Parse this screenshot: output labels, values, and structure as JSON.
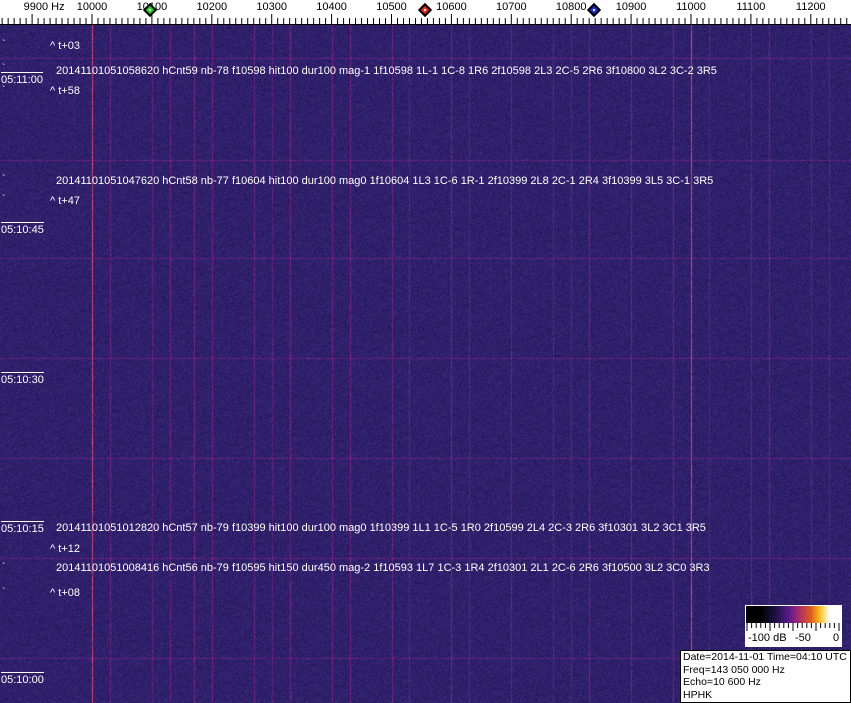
{
  "frequency_axis": {
    "labels": [
      "9900 Hz",
      "10000",
      "10100",
      "10200",
      "10300",
      "10400",
      "10500",
      "10600",
      "10700",
      "10800",
      "10900",
      "11000",
      "11100",
      "11200"
    ],
    "values_hz": [
      9900,
      10000,
      10100,
      10200,
      10300,
      10400,
      10500,
      10600,
      10700,
      10800,
      10900,
      11000,
      11100,
      11200
    ]
  },
  "markers": [
    {
      "name": "green",
      "freq_hz": 10097,
      "color": "#22cc22"
    },
    {
      "name": "red",
      "freq_hz": 10556,
      "color": "#dd2222"
    },
    {
      "name": "blue",
      "freq_hz": 10838,
      "color": "#1a2acc"
    }
  ],
  "time_labels": [
    "05:11:00",
    "05:10:45",
    "05:10:30",
    "05:10:15",
    "05:10:00"
  ],
  "detections": [
    {
      "text": "20141101051058620 hCnt59 nb-78 f10598 hit100 dur100 mag-1 1f10598 1L-1 1C-8 1R6 2f10598 2L3 2C-5 2R6 3f10800 3L2 3C-2 3R5"
    },
    {
      "text": "20141101051047620 hCnt58 nb-77 f10604 hit100 dur100 mag0 1f10604 1L3 1C-6 1R-1 2f10399 2L8 2C-1 2R4 3f10399 3L5 3C-1 3R5"
    },
    {
      "text": "20141101051012820 hCnt57 nb-79 f10399 hit100 dur100 mag0 1f10399 1L1 1C-5 1R0 2f10599 2L4 2C-3 2R6 3f10301 3L2 3C1 3R5"
    },
    {
      "text": "20141101051008416 hCnt56 nb-79 f10595 hit150 dur450 mag-2 1f10593 1L7 1C-3 1R4 2f10301 2L1 2C-6 2R6 3f10500 3L2 3C0 3R3"
    }
  ],
  "offsets": [
    "^ t+03",
    "^ t+58",
    "^ t+47",
    "^ t+12",
    "^ t+08"
  ],
  "colorbar": {
    "labels": [
      "-100 dB",
      "-50",
      "0"
    ]
  },
  "info": {
    "date_line": "Date=2014-11-01 Time=04:10 UTC",
    "freq_line": "Freq=143 050 000 Hz",
    "echo_line": "Echo=10 600 Hz",
    "station": "HPHK"
  },
  "colors": {
    "background": "#2b1f6e",
    "carrier": "#e0607a"
  }
}
